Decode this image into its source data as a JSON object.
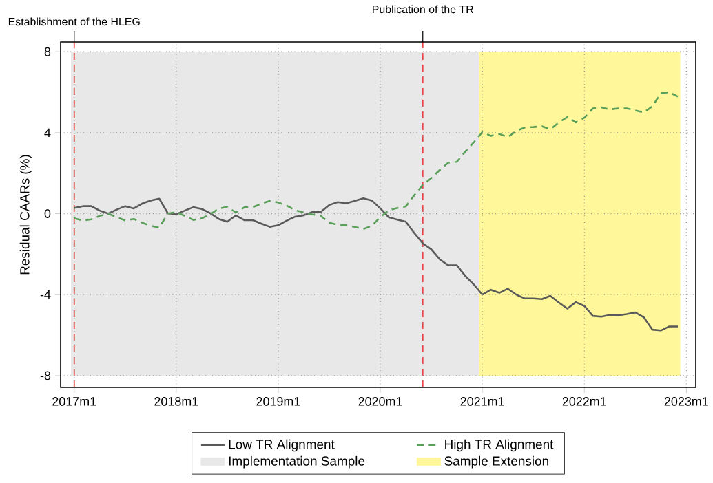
{
  "chart_data": {
    "type": "line",
    "ylabel": "Residual CAARs (%)",
    "x": [
      "2017-01",
      "2017-02",
      "2017-03",
      "2017-04",
      "2017-05",
      "2017-06",
      "2017-07",
      "2017-08",
      "2017-09",
      "2017-10",
      "2017-11",
      "2017-12",
      "2018-01",
      "2018-02",
      "2018-03",
      "2018-04",
      "2018-05",
      "2018-06",
      "2018-07",
      "2018-08",
      "2018-09",
      "2018-10",
      "2018-11",
      "2018-12",
      "2019-01",
      "2019-02",
      "2019-03",
      "2019-04",
      "2019-05",
      "2019-06",
      "2019-07",
      "2019-08",
      "2019-09",
      "2019-10",
      "2019-11",
      "2019-12",
      "2020-01",
      "2020-02",
      "2020-03",
      "2020-04",
      "2020-05",
      "2020-06",
      "2020-07",
      "2020-08",
      "2020-09",
      "2020-10",
      "2020-11",
      "2020-12",
      "2021-01",
      "2021-02",
      "2021-03",
      "2021-04",
      "2021-05",
      "2021-06",
      "2021-07",
      "2021-08",
      "2021-09",
      "2021-10",
      "2021-11",
      "2021-12",
      "2022-01",
      "2022-02",
      "2022-03",
      "2022-04",
      "2022-05",
      "2022-06",
      "2022-07",
      "2022-08",
      "2022-09",
      "2022-10",
      "2022-11",
      "2022-12"
    ],
    "series": [
      {
        "name": "Low TR Alignment",
        "color": "#5a5a5a",
        "line_style": "solid",
        "values": [
          0.28,
          0.37,
          0.37,
          0.15,
          0.0,
          0.2,
          0.37,
          0.26,
          0.5,
          0.65,
          0.74,
          0.02,
          -0.03,
          0.15,
          0.32,
          0.23,
          0.02,
          -0.26,
          -0.4,
          -0.09,
          -0.32,
          -0.32,
          -0.49,
          -0.65,
          -0.57,
          -0.34,
          -0.15,
          -0.08,
          0.08,
          0.09,
          0.43,
          0.57,
          0.51,
          0.63,
          0.76,
          0.65,
          0.26,
          -0.18,
          -0.3,
          -0.4,
          -0.96,
          -1.47,
          -1.76,
          -2.26,
          -2.55,
          -2.55,
          -3.08,
          -3.5,
          -4.0,
          -3.76,
          -3.91,
          -3.71,
          -4.0,
          -4.19,
          -4.19,
          -4.22,
          -4.06,
          -4.39,
          -4.69,
          -4.37,
          -4.56,
          -5.05,
          -5.09,
          -5.0,
          -5.02,
          -4.96,
          -4.88,
          -5.12,
          -5.73,
          -5.77,
          -5.57,
          -5.57
        ]
      },
      {
        "name": "High TR Alignment",
        "color": "#5aa05a",
        "line_style": "dashed",
        "values": [
          -0.23,
          -0.34,
          -0.28,
          -0.11,
          0.0,
          -0.17,
          -0.34,
          -0.26,
          -0.45,
          -0.6,
          -0.69,
          0.0,
          0.08,
          -0.11,
          -0.31,
          -0.23,
          -0.03,
          0.25,
          0.34,
          0.06,
          0.31,
          0.32,
          0.49,
          0.63,
          0.55,
          0.4,
          0.17,
          0.06,
          -0.03,
          -0.11,
          -0.45,
          -0.55,
          -0.57,
          -0.65,
          -0.76,
          -0.6,
          -0.17,
          0.17,
          0.28,
          0.36,
          0.91,
          1.42,
          1.76,
          2.16,
          2.52,
          2.56,
          3.07,
          3.52,
          4.03,
          3.84,
          3.94,
          3.78,
          4.09,
          4.26,
          4.28,
          4.32,
          4.17,
          4.51,
          4.77,
          4.51,
          4.74,
          5.2,
          5.25,
          5.15,
          5.2,
          5.2,
          5.1,
          5.0,
          5.3,
          5.95,
          6.0,
          5.78
        ]
      }
    ],
    "xlim": [
      "2016-11-13",
      "2023-02-04"
    ],
    "ylim": [
      -8.58,
      8.48
    ],
    "xticks": [
      {
        "value": "2017-01",
        "label": "2017m1"
      },
      {
        "value": "2018-01",
        "label": "2018m1"
      },
      {
        "value": "2019-01",
        "label": "2019m1"
      },
      {
        "value": "2020-01",
        "label": "2020m1"
      },
      {
        "value": "2021-01",
        "label": "2021m1"
      },
      {
        "value": "2022-01",
        "label": "2022m1"
      },
      {
        "value": "2023-01",
        "label": "2023m1"
      }
    ],
    "yticks": [
      -8,
      -4,
      0,
      4,
      8
    ],
    "ref_lines": [
      {
        "axis": "x",
        "value": "2017-01",
        "label": "Establishment of the HLEG",
        "color": "#e8474a",
        "line_style": "dashed"
      },
      {
        "axis": "x",
        "value": "2020-06",
        "label": "Publication of the TR",
        "color": "#e8474a",
        "line_style": "dashed"
      }
    ],
    "bands": [
      {
        "axis": "x",
        "from": "2016-12-20",
        "to": "2020-12-20",
        "label": "Implementation Sample",
        "color": "#e8e8e8"
      },
      {
        "axis": "x",
        "from": "2020-12-20",
        "to": "2022-12-10",
        "label": "Sample Extension",
        "color": "#fff799"
      }
    ],
    "grid": true,
    "legend": "bottom"
  }
}
